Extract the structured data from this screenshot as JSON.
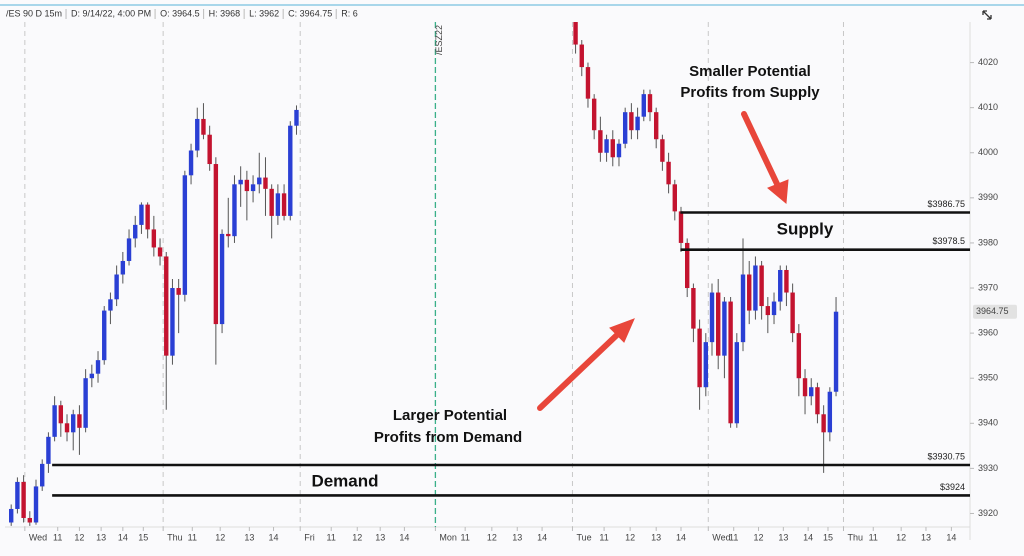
{
  "chart_data": {
    "type": "candlestick",
    "ohlc_legend": [
      "/ES 90 D 15m",
      "D: 9/14/22, 4:00 PM",
      "O: 3964.5",
      "H: 3968",
      "L: 3962",
      "C: 3964.75",
      "R: 6"
    ],
    "up_color": "#2a3fd4",
    "down_color": "#c3132f",
    "x": [
      1,
      2,
      3,
      4,
      5,
      6,
      7,
      8,
      9,
      10,
      11,
      12,
      13,
      14,
      15,
      16,
      17,
      18,
      19,
      20,
      21,
      22,
      23,
      24,
      25,
      26,
      27,
      28,
      29,
      30,
      31,
      32,
      33,
      34,
      35,
      36,
      37,
      38,
      39,
      40,
      41,
      42,
      43,
      44,
      45,
      46,
      47,
      92,
      93,
      94,
      95,
      96,
      97,
      98,
      99,
      100,
      101,
      102,
      103,
      104,
      105,
      106,
      107,
      108,
      109,
      110,
      111,
      112,
      113,
      114,
      115,
      116,
      117,
      118,
      119,
      120,
      121,
      122,
      123,
      124,
      125,
      126,
      127,
      128,
      129,
      130,
      131,
      132,
      133,
      134
    ],
    "open": [
      3918,
      3921,
      3927,
      3919,
      3918,
      3926,
      3931,
      3937,
      3944,
      3940,
      3938,
      3942,
      3939,
      3950,
      3951,
      3954,
      3965,
      3967.5,
      3973,
      3976,
      3981,
      3984,
      3988.5,
      3983,
      3979,
      3977,
      3955,
      3970,
      3968.5,
      3995,
      4000.5,
      4007.5,
      4004,
      3997.5,
      3962,
      3982,
      3981.5,
      3993,
      3994,
      3991.5,
      3993,
      3994.5,
      3992,
      3986,
      3991,
      3986,
      4006,
      4029,
      4024,
      4019,
      4012,
      4005,
      4000,
      4003,
      3999,
      4002,
      4009,
      4005,
      4008,
      4013,
      4009,
      4003,
      3998,
      3993,
      3987,
      3980,
      3970,
      3961,
      3948,
      3958,
      3969,
      3955,
      3967,
      3940,
      3958,
      3973,
      3965,
      3975,
      3966,
      3964,
      3967,
      3974,
      3969,
      3960,
      3950,
      3946,
      3948,
      3942,
      3938,
      3947
    ],
    "high": [
      3922,
      3928,
      3928.5,
      3920.5,
      3927.5,
      3932,
      3938,
      3946,
      3945,
      3942,
      3943,
      3944,
      3952,
      3953,
      3956,
      3966,
      3969,
      3975,
      3978,
      3983,
      3986,
      3989,
      3989,
      3986,
      3981,
      3978,
      3972,
      3972,
      3996,
      4002,
      4010,
      4011,
      4006,
      3999,
      3983,
      3990,
      3995,
      3997,
      3996,
      3995,
      4000,
      3999,
      3993,
      3993,
      3993,
      4007,
      4010.5,
      4029,
      4025,
      4020,
      4013,
      4008,
      4004,
      4005,
      4003,
      4010,
      4011,
      4010,
      4014,
      4014,
      4010,
      4004,
      4000,
      3994,
      3988,
      3981,
      3971,
      3963,
      3960,
      3971,
      3972,
      3968,
      3968,
      3960,
      3981,
      3976,
      3977,
      3976,
      3968,
      3969,
      3975,
      3975,
      3971,
      3962,
      3952,
      3950,
      3949,
      3944,
      3948,
      3968
    ],
    "low": [
      3917.25,
      3920,
      3918,
      3917.25,
      3917.5,
      3925,
      3929,
      3936,
      3937,
      3936,
      3934,
      3933,
      3938,
      3948,
      3949,
      3953,
      3962,
      3966,
      3971,
      3975,
      3979,
      3982,
      3981,
      3977,
      3975,
      3943,
      3953,
      3960,
      3967,
      3993,
      3999,
      4003,
      3996,
      3953,
      3960,
      3979,
      3980,
      3988,
      3985,
      3989,
      3991,
      3986,
      3981,
      3984,
      3985,
      3985,
      4004,
      4022,
      4017,
      4010,
      4003,
      3998,
      3998,
      3997,
      3997,
      4001,
      4003,
      4003,
      4007,
      4007,
      4001,
      3996,
      3991,
      3985,
      3978,
      3968,
      3958,
      3943,
      3946,
      3955,
      3952,
      3950,
      3939,
      3939,
      3956,
      3962,
      3963,
      3963,
      3960,
      3962,
      3965,
      3966,
      3958,
      3946,
      3942,
      3944,
      3940,
      3929,
      3936,
      3946
    ],
    "close": [
      3921,
      3927,
      3919,
      3918,
      3926,
      3931,
      3937,
      3944,
      3940,
      3938,
      3942,
      3939,
      3950,
      3951,
      3954,
      3965,
      3967.5,
      3973,
      3976,
      3981,
      3984,
      3988.5,
      3983,
      3979,
      3977,
      3955,
      3970,
      3968.5,
      3995,
      4000.5,
      4007.5,
      4004,
      3997.5,
      3962,
      3982,
      3981.5,
      3993,
      3994,
      3991.5,
      3993,
      3994.5,
      3992,
      3986,
      3991,
      3986,
      4006,
      4009.5,
      4024,
      4019,
      4012,
      4005,
      4000,
      4003,
      3999,
      4002,
      4009,
      4005,
      4008,
      4013,
      4009,
      4003,
      3998,
      3993,
      3987,
      3980,
      3970,
      3961,
      3948,
      3958,
      3969,
      3955,
      3967,
      3940,
      3958,
      3973,
      3965,
      3975,
      3966,
      3964,
      3967,
      3974,
      3969,
      3960,
      3950,
      3946,
      3948,
      3942,
      3938,
      3947,
      3964.75
    ],
    "xlim": [
      0,
      155.6
    ],
    "xticks": [
      {
        "value": 3.2,
        "label": "Wed"
      },
      {
        "value": 8.5,
        "label": "11"
      },
      {
        "value": 12,
        "label": "12"
      },
      {
        "value": 15.5,
        "label": "13"
      },
      {
        "value": 19,
        "label": "14"
      },
      {
        "value": 22.3,
        "label": "15"
      },
      {
        "value": 25.5,
        "label": "Thu"
      },
      {
        "value": 30.2,
        "label": "11"
      },
      {
        "value": 34.7,
        "label": "12"
      },
      {
        "value": 39.4,
        "label": "13"
      },
      {
        "value": 43.3,
        "label": "14"
      },
      {
        "value": 47.6,
        "label": "Fri"
      },
      {
        "value": 52.6,
        "label": "11"
      },
      {
        "value": 56.8,
        "label": "12"
      },
      {
        "value": 60.5,
        "label": "13"
      },
      {
        "value": 64.4,
        "label": "14"
      },
      {
        "value": 69.4,
        "label": "Mon"
      },
      {
        "value": 74.2,
        "label": "11"
      },
      {
        "value": 78.5,
        "label": "12"
      },
      {
        "value": 82.6,
        "label": "13"
      },
      {
        "value": 86.6,
        "label": "14"
      },
      {
        "value": 91.5,
        "label": "Tue"
      },
      {
        "value": 96.6,
        "label": "11"
      },
      {
        "value": 100.8,
        "label": "12"
      },
      {
        "value": 105,
        "label": "13"
      },
      {
        "value": 109,
        "label": "14"
      },
      {
        "value": 113.4,
        "label": "Wed"
      },
      {
        "value": 117.5,
        "label": "11"
      },
      {
        "value": 121.5,
        "label": "12"
      },
      {
        "value": 125.5,
        "label": "13"
      },
      {
        "value": 129.5,
        "label": "14"
      },
      {
        "value": 132.7,
        "label": "15"
      },
      {
        "value": 135.2,
        "label": "Thu"
      },
      {
        "value": 140,
        "label": "11"
      },
      {
        "value": 144.5,
        "label": "12"
      },
      {
        "value": 148.5,
        "label": "13"
      },
      {
        "value": 152.6,
        "label": "14"
      }
    ],
    "ylim": [
      3917,
      4029
    ],
    "yticks": [
      3920,
      3930,
      3940,
      3950,
      3960,
      3970,
      3980,
      3990,
      4000,
      4010,
      4020
    ],
    "contract_roll": {
      "x": 69.4,
      "label": "/ESZ22",
      "color": "#3ab08a"
    },
    "last_price": {
      "value": 3964.75,
      "label": "3964.75"
    },
    "levels": [
      {
        "value": 3986.75,
        "label": "$3986.75",
        "x0": 108.9
      },
      {
        "value": 3978.5,
        "label": "$3978.5",
        "x0": 108.9
      },
      {
        "value": 3930.75,
        "label": "$3930.75",
        "x0": 7.6
      },
      {
        "value": 3924,
        "label": "$3924",
        "x0": 7.6
      }
    ],
    "annotations": {
      "supply": "Supply",
      "demand": "Demand",
      "supply_note": [
        "Smaller Potential",
        "Profits from Supply"
      ],
      "demand_note": [
        "Larger Potential",
        "Profits from Demand"
      ]
    }
  }
}
